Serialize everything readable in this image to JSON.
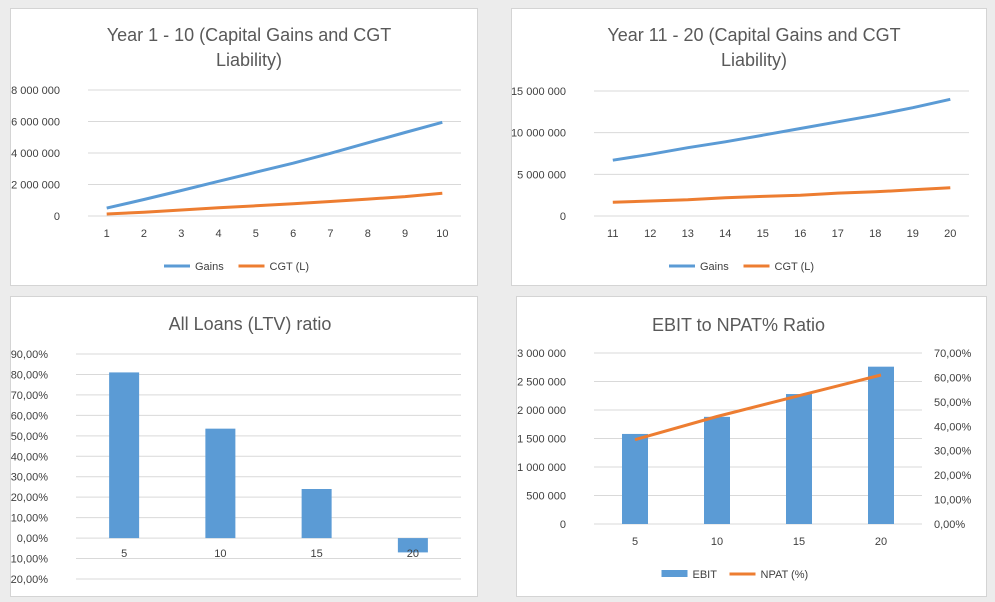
{
  "chart_data": [
    {
      "type": "line",
      "title": "Year 1 - 10 (Capital Gains and CGT Liability)",
      "title_lines": [
        "Year 1 - 10 (Capital Gains and CGT",
        "Liability)"
      ],
      "x": [
        1,
        2,
        3,
        4,
        5,
        6,
        7,
        8,
        9,
        10
      ],
      "ylim": [
        0,
        8000000
      ],
      "yticks": [
        0,
        2000000,
        4000000,
        6000000,
        8000000
      ],
      "ytick_labels": [
        "0",
        "2 000 000",
        "4 000 000",
        "6 000 000",
        "8 000 000"
      ],
      "grid": true,
      "legend": "bottom",
      "series": [
        {
          "name": "Gains",
          "color": "#5b9bd5",
          "values": [
            500000,
            1050000,
            1620000,
            2200000,
            2780000,
            3350000,
            3980000,
            4650000,
            5300000,
            5950000
          ]
        },
        {
          "name": "CGT (L)",
          "color": "#ed7d31",
          "values": [
            130000,
            240000,
            380000,
            520000,
            650000,
            780000,
            920000,
            1070000,
            1230000,
            1450000
          ]
        }
      ]
    },
    {
      "type": "line",
      "title": "Year 11 - 20  (Capital Gains and CGT Liability)",
      "title_lines": [
        "Year 11 - 20  (Capital Gains and CGT",
        "Liability)"
      ],
      "x": [
        11,
        12,
        13,
        14,
        15,
        16,
        17,
        18,
        19,
        20
      ],
      "ylim": [
        0,
        15000000
      ],
      "yticks": [
        0,
        5000000,
        10000000,
        15000000
      ],
      "ytick_labels": [
        "0",
        "5 000 000",
        "10 000 000",
        "15 000 000"
      ],
      "grid": true,
      "legend": "bottom",
      "series": [
        {
          "name": "Gains",
          "color": "#5b9bd5",
          "values": [
            6700000,
            7400000,
            8200000,
            8900000,
            9700000,
            10500000,
            11300000,
            12100000,
            13000000,
            14000000
          ]
        },
        {
          "name": "CGT (L)",
          "color": "#ed7d31",
          "values": [
            1650000,
            1800000,
            1950000,
            2200000,
            2350000,
            2500000,
            2750000,
            2900000,
            3150000,
            3400000
          ]
        }
      ]
    },
    {
      "type": "bar",
      "title": "All Loans (LTV) ratio",
      "title_lines": [
        "All Loans (LTV) ratio"
      ],
      "categories": [
        "5",
        "10",
        "15",
        "20"
      ],
      "ylim": [
        -0.2,
        0.9
      ],
      "yticks": [
        -0.2,
        -0.1,
        0,
        0.1,
        0.2,
        0.3,
        0.4,
        0.5,
        0.6,
        0.7,
        0.8,
        0.9
      ],
      "ytick_labels": [
        "-20,00%",
        "-10,00%",
        "0,00%",
        "10,00%",
        "20,00%",
        "30,00%",
        "40,00%",
        "50,00%",
        "60,00%",
        "70,00%",
        "80,00%",
        "90,00%"
      ],
      "grid": true,
      "series": [
        {
          "color": "#5b9bd5",
          "values": [
            0.81,
            0.535,
            0.24,
            -0.07
          ]
        }
      ]
    },
    {
      "type": "bar",
      "title": "EBIT to NPAT% Ratio",
      "title_lines": [
        "EBIT to NPAT% Ratio"
      ],
      "categories": [
        "5",
        "10",
        "15",
        "20"
      ],
      "ylim": [
        0,
        3000000
      ],
      "yticks": [
        0,
        500000,
        1000000,
        1500000,
        2000000,
        2500000,
        3000000
      ],
      "ytick_labels": [
        "0",
        "500 000",
        "1 000 000",
        "1 500 000",
        "2 000 000",
        "2 500 000",
        "3 000 000"
      ],
      "y2lim": [
        0,
        0.7
      ],
      "y2ticks": [
        0,
        0.1,
        0.2,
        0.3,
        0.4,
        0.5,
        0.6,
        0.7
      ],
      "y2tick_labels": [
        "0,00%",
        "10,00%",
        "20,00%",
        "30,00%",
        "40,00%",
        "50,00%",
        "60,00%",
        "70,00%"
      ],
      "grid": true,
      "legend": "bottom",
      "series": [
        {
          "name": "EBIT",
          "type": "bar",
          "color": "#5b9bd5",
          "values": [
            1580000,
            1880000,
            2280000,
            2760000
          ]
        },
        {
          "name": "NPAT (%)",
          "type": "line",
          "axis": "right",
          "color": "#ed7d31",
          "values": [
            0.345,
            0.44,
            0.525,
            0.61
          ]
        }
      ]
    }
  ]
}
